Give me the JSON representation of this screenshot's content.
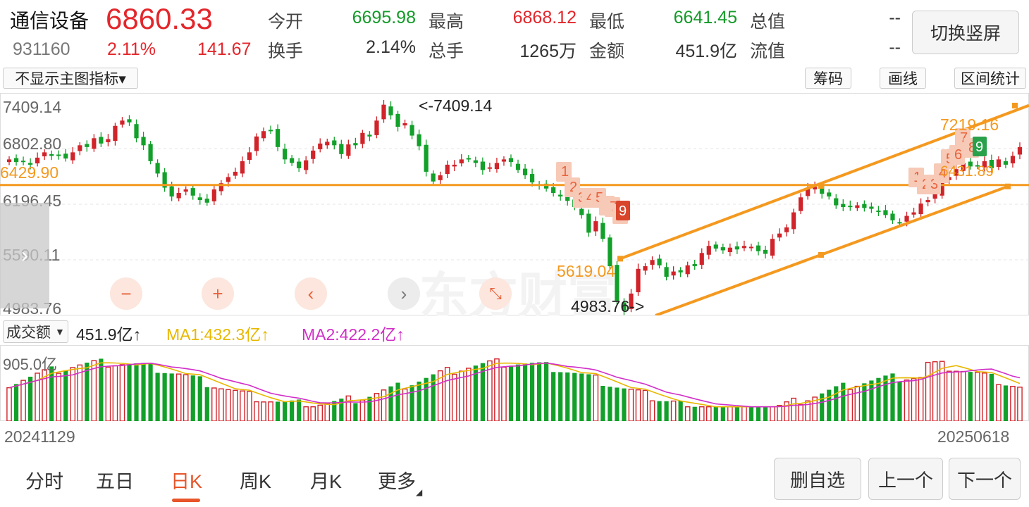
{
  "header": {
    "name": "通信设备",
    "code": "931160",
    "price": "6860.33",
    "change_pct": "2.11%",
    "change_amt": "141.67",
    "open_label": "今开",
    "open": "6695.98",
    "high_label": "最高",
    "high": "6868.12",
    "low_label": "最低",
    "low": "6641.45",
    "total_value_label": "总值",
    "total_value": "--",
    "turnover_label": "换手",
    "turnover": "2.14%",
    "volume_label": "总手",
    "volume": "1265万",
    "amount_label": "金额",
    "amount": "451.9亿",
    "float_value_label": "流值",
    "float_value": "--",
    "switch_button": "切换竖屏"
  },
  "toolbar": {
    "indicator_select": "不显示主图指标▾",
    "chips_button": "筹码",
    "draw_button": "画线",
    "range_stats_button": "区间统计"
  },
  "main_chart": {
    "y_ticks": [
      "7409.14",
      "6802.80",
      "6196.45",
      "5590.11",
      "4983.76"
    ],
    "ylim": [
      4983.76,
      7409.14
    ],
    "max_annotation": "<-7409.14",
    "min_annotation": "4983.76->",
    "hline_label": "6429.90",
    "channel_label_low": "5619.04",
    "channel_label_high": "7219.16",
    "channel_label_mid": "6431.89",
    "watermark": "东方财富",
    "colors": {
      "up": "#d0242a",
      "down": "#12a02a",
      "line": "#f4991f",
      "seq": "#e8623c",
      "seq_bg": "#f7c9b7",
      "hl9_red": "#d9452a",
      "hl9_green": "#29a04a"
    }
  },
  "chart_data": {
    "type": "candlestick",
    "x_start": "20241129",
    "x_end": "20250618",
    "ylim": [
      4983.76,
      7409.14
    ],
    "closes": [
      6720,
      6690,
      6700,
      6660,
      6740,
      6800,
      6760,
      6770,
      6730,
      6800,
      6880,
      6860,
      6960,
      6900,
      6950,
      7100,
      7160,
      7140,
      6960,
      6880,
      6700,
      6560,
      6400,
      6300,
      6340,
      6380,
      6310,
      6260,
      6230,
      6380,
      6450,
      6520,
      6580,
      6700,
      6800,
      6980,
      7040,
      7050,
      6860,
      6720,
      6680,
      6620,
      6710,
      6820,
      6900,
      6920,
      6880,
      6780,
      6890,
      6880,
      7020,
      6980,
      7160,
      7340,
      7220,
      7090,
      7130,
      6990,
      6870,
      6580,
      6470,
      6540,
      6660,
      6660,
      6720,
      6730,
      6680,
      6600,
      6630,
      6680,
      6720,
      6690,
      6600,
      6540,
      6460,
      6430,
      6390,
      6340,
      6300,
      6250,
      6180,
      6090,
      5890,
      6020,
      5820,
      5510,
      5120,
      5010,
      5200,
      5480,
      5510,
      5580,
      5520,
      5390,
      5450,
      5440,
      5520,
      5510,
      5660,
      5740,
      5710,
      5690,
      5720,
      5700,
      5740,
      5730,
      5680,
      5650,
      5820,
      5880,
      5950,
      6120,
      6290,
      6400,
      6410,
      6330,
      6300,
      6200,
      6180,
      6190,
      6200,
      6170,
      6160,
      6130,
      6090,
      6030,
      6000,
      6080,
      6120,
      6220,
      6260,
      6330,
      6470,
      6520,
      6610,
      6680,
      6640,
      6650,
      6700,
      6620,
      6720,
      6660,
      6760,
      6860
    ],
    "hline": 6429.9,
    "volume": {
      "label": "成交额",
      "current": "451.9亿",
      "ma1_label": "MA1:432.3亿↑",
      "ma2_label": "MA2:422.2亿↑",
      "max_tick": "905.0亿",
      "max": 905.0
    }
  },
  "controls": {
    "zoom_out": "−",
    "zoom_in": "+",
    "prev": "‹",
    "next": "›",
    "shrink": "⤡",
    "side_toggle": "›"
  },
  "tabs": [
    "分时",
    "五日",
    "日K",
    "周K",
    "月K",
    "更多"
  ],
  "active_tab": "日K",
  "bottom_buttons": {
    "remove_watch": "删自选",
    "prev_item": "上一个",
    "next_item": "下一个"
  }
}
